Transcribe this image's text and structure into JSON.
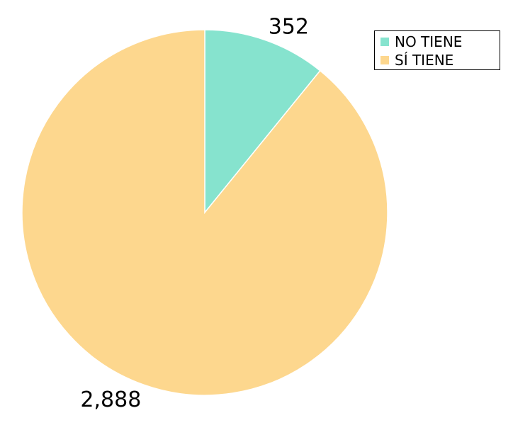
{
  "chart_data": {
    "type": "pie",
    "categories": [
      "NO TIENE",
      "SÍ TIENE"
    ],
    "values": [
      352,
      2888
    ],
    "data_labels": [
      "352",
      "2,888"
    ],
    "colors": [
      "#86E3CE",
      "#FDD78E"
    ],
    "legend_position": "top-right",
    "start_angle_deg": 0,
    "direction": "clockwise"
  },
  "legend": {
    "items": [
      {
        "label": "NO TIENE",
        "color": "#86E3CE"
      },
      {
        "label": "SÍ TIENE",
        "color": "#FDD78E"
      }
    ]
  }
}
